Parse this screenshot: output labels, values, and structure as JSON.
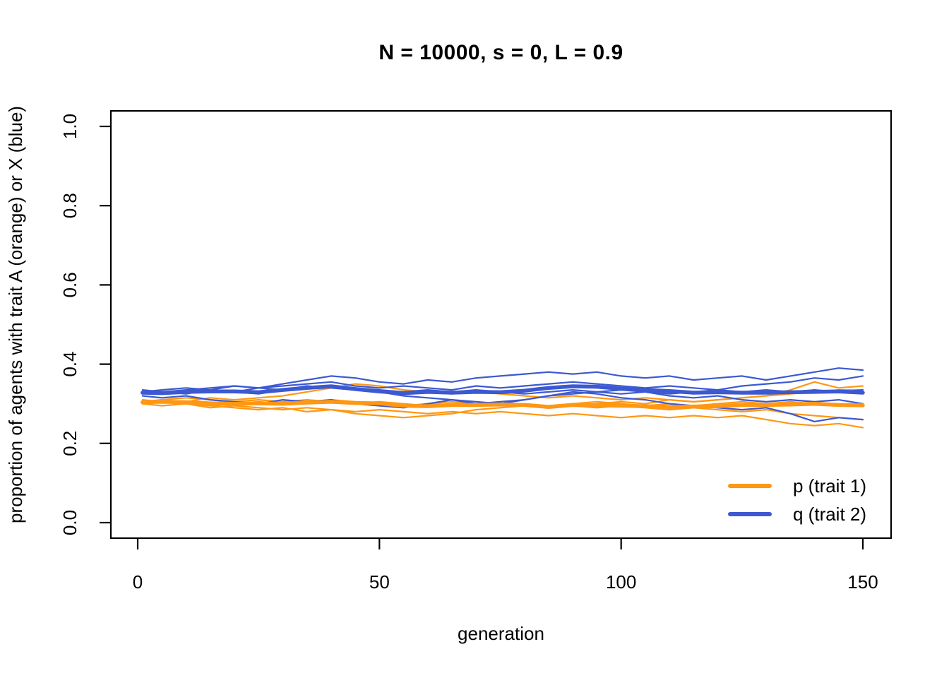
{
  "figure": {
    "background_color": "#ffffff",
    "foreground_color": "#000000"
  },
  "legend": {
    "position": "bottom-right",
    "entries": [
      {
        "label": "p (trait 1)",
        "series_group": "p",
        "color": "#FF9713"
      },
      {
        "label": "q (trait 2)",
        "series_group": "q",
        "color": "#3C59D1"
      }
    ]
  },
  "chart_data": {
    "type": "line",
    "title": "N = 10000, s = 0, L = 0.9",
    "xlabel": "generation",
    "ylabel": "proportion of agents with trait A (orange) or X (blue)",
    "xlim": [
      0,
      150
    ],
    "ylim": [
      0.0,
      1.0
    ],
    "x_ticks": [
      0,
      50,
      100,
      150
    ],
    "x_tick_labels": [
      "0",
      "50",
      "100",
      "150"
    ],
    "y_ticks": [
      0.0,
      0.2,
      0.4,
      0.6,
      0.8,
      1.0
    ],
    "y_tick_labels": [
      "0.0",
      "0.2",
      "0.4",
      "0.6",
      "0.8",
      "1.0"
    ],
    "grid": false,
    "colors": {
      "p": "#FF9713",
      "q": "#3C59D1"
    },
    "x": [
      1,
      5,
      10,
      15,
      20,
      25,
      30,
      35,
      40,
      45,
      50,
      55,
      60,
      65,
      70,
      75,
      80,
      85,
      90,
      95,
      100,
      105,
      110,
      115,
      120,
      125,
      130,
      135,
      140,
      145,
      150
    ],
    "series": [
      {
        "name": "p run 1",
        "group": "p",
        "role": "run",
        "values": [
          0.305,
          0.31,
          0.305,
          0.315,
          0.31,
          0.315,
          0.32,
          0.33,
          0.34,
          0.35,
          0.345,
          0.335,
          0.33,
          0.325,
          0.33,
          0.325,
          0.32,
          0.315,
          0.32,
          0.315,
          0.31,
          0.315,
          0.31,
          0.305,
          0.31,
          0.315,
          0.32,
          0.335,
          0.355,
          0.34,
          0.345
        ]
      },
      {
        "name": "p run 2",
        "group": "p",
        "role": "run",
        "values": [
          0.3,
          0.305,
          0.3,
          0.295,
          0.3,
          0.305,
          0.3,
          0.305,
          0.31,
          0.305,
          0.3,
          0.295,
          0.3,
          0.305,
          0.3,
          0.295,
          0.3,
          0.295,
          0.3,
          0.305,
          0.3,
          0.295,
          0.3,
          0.295,
          0.3,
          0.305,
          0.3,
          0.305,
          0.3,
          0.295,
          0.3
        ]
      },
      {
        "name": "p run 3",
        "group": "p",
        "role": "run",
        "values": [
          0.31,
          0.305,
          0.3,
          0.295,
          0.29,
          0.285,
          0.29,
          0.28,
          0.285,
          0.275,
          0.27,
          0.265,
          0.27,
          0.275,
          0.285,
          0.29,
          0.295,
          0.29,
          0.295,
          0.3,
          0.305,
          0.3,
          0.31,
          0.305,
          0.31,
          0.315,
          0.32,
          0.325,
          0.33,
          0.335,
          0.335
        ]
      },
      {
        "name": "p run 4",
        "group": "p",
        "role": "run",
        "values": [
          0.3,
          0.295,
          0.3,
          0.29,
          0.295,
          0.29,
          0.285,
          0.29,
          0.285,
          0.28,
          0.285,
          0.28,
          0.275,
          0.28,
          0.275,
          0.28,
          0.275,
          0.27,
          0.275,
          0.27,
          0.265,
          0.27,
          0.265,
          0.27,
          0.265,
          0.27,
          0.26,
          0.25,
          0.245,
          0.25,
          0.24
        ]
      },
      {
        "name": "p run 5",
        "group": "p",
        "role": "run",
        "values": [
          0.305,
          0.31,
          0.315,
          0.31,
          0.305,
          0.31,
          0.305,
          0.31,
          0.305,
          0.3,
          0.305,
          0.3,
          0.295,
          0.3,
          0.295,
          0.3,
          0.295,
          0.29,
          0.295,
          0.29,
          0.295,
          0.29,
          0.285,
          0.29,
          0.285,
          0.28,
          0.285,
          0.275,
          0.27,
          0.265,
          0.26
        ]
      },
      {
        "name": "q run 1",
        "group": "q",
        "role": "run",
        "values": [
          0.33,
          0.335,
          0.34,
          0.335,
          0.345,
          0.34,
          0.35,
          0.36,
          0.37,
          0.365,
          0.355,
          0.35,
          0.36,
          0.355,
          0.365,
          0.37,
          0.375,
          0.38,
          0.375,
          0.38,
          0.37,
          0.365,
          0.37,
          0.36,
          0.365,
          0.37,
          0.36,
          0.37,
          0.38,
          0.39,
          0.385
        ]
      },
      {
        "name": "q run 2",
        "group": "q",
        "role": "run",
        "values": [
          0.325,
          0.33,
          0.325,
          0.335,
          0.33,
          0.34,
          0.345,
          0.35,
          0.355,
          0.345,
          0.34,
          0.345,
          0.34,
          0.335,
          0.345,
          0.34,
          0.345,
          0.35,
          0.355,
          0.35,
          0.345,
          0.34,
          0.345,
          0.34,
          0.335,
          0.345,
          0.35,
          0.355,
          0.365,
          0.36,
          0.37
        ]
      },
      {
        "name": "q run 3",
        "group": "q",
        "role": "run",
        "values": [
          0.33,
          0.325,
          0.33,
          0.335,
          0.33,
          0.325,
          0.335,
          0.34,
          0.345,
          0.34,
          0.335,
          0.33,
          0.335,
          0.33,
          0.335,
          0.33,
          0.325,
          0.33,
          0.335,
          0.33,
          0.335,
          0.33,
          0.325,
          0.33,
          0.335,
          0.33,
          0.335,
          0.33,
          0.335,
          0.33,
          0.335
        ]
      },
      {
        "name": "q run 4",
        "group": "q",
        "role": "run",
        "values": [
          0.32,
          0.315,
          0.32,
          0.31,
          0.305,
          0.3,
          0.31,
          0.305,
          0.31,
          0.3,
          0.295,
          0.29,
          0.3,
          0.31,
          0.305,
          0.3,
          0.31,
          0.32,
          0.33,
          0.325,
          0.315,
          0.31,
          0.3,
          0.295,
          0.29,
          0.285,
          0.29,
          0.275,
          0.255,
          0.265,
          0.26
        ]
      },
      {
        "name": "q run 5",
        "group": "q",
        "role": "run",
        "values": [
          0.335,
          0.33,
          0.335,
          0.34,
          0.345,
          0.34,
          0.335,
          0.345,
          0.34,
          0.335,
          0.33,
          0.32,
          0.315,
          0.31,
          0.3,
          0.305,
          0.31,
          0.32,
          0.325,
          0.33,
          0.325,
          0.33,
          0.32,
          0.315,
          0.32,
          0.31,
          0.305,
          0.31,
          0.305,
          0.31,
          0.3
        ]
      },
      {
        "name": "p mean",
        "group": "p",
        "role": "mean",
        "values": [
          0.304,
          0.305,
          0.304,
          0.301,
          0.3,
          0.301,
          0.3,
          0.303,
          0.305,
          0.302,
          0.301,
          0.295,
          0.294,
          0.297,
          0.297,
          0.298,
          0.297,
          0.292,
          0.297,
          0.296,
          0.295,
          0.294,
          0.292,
          0.293,
          0.294,
          0.297,
          0.297,
          0.298,
          0.3,
          0.297,
          0.296
        ]
      },
      {
        "name": "q mean",
        "group": "q",
        "role": "mean",
        "values": [
          0.328,
          0.327,
          0.33,
          0.331,
          0.331,
          0.329,
          0.335,
          0.34,
          0.344,
          0.337,
          0.331,
          0.327,
          0.33,
          0.328,
          0.33,
          0.329,
          0.333,
          0.34,
          0.344,
          0.343,
          0.338,
          0.335,
          0.332,
          0.328,
          0.329,
          0.328,
          0.328,
          0.329,
          0.33,
          0.331,
          0.328
        ]
      }
    ]
  }
}
